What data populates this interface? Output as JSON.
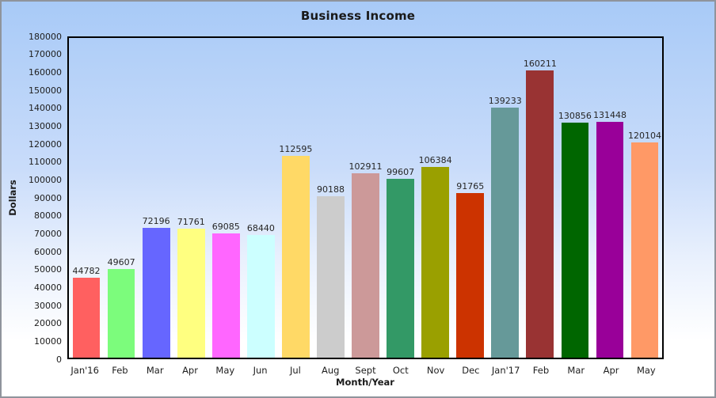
{
  "window": {
    "border_color": "#8f949c",
    "background_gradient_top": "#a8caf7",
    "background_gradient_bottom": "#ffffff",
    "axis_line_color": "#000000",
    "text_color": "#202020"
  },
  "chart_data": {
    "type": "bar",
    "title": "Business Income",
    "xlabel": "Month/Year",
    "ylabel": "Dollars",
    "ylim": [
      0,
      180000
    ],
    "ytick_step": 10000,
    "grid": false,
    "legend_position": "none",
    "value_labels_shown": true,
    "categories": [
      "Jan'16",
      "Feb",
      "Mar",
      "Apr",
      "May",
      "Jun",
      "Jul",
      "Aug",
      "Sept",
      "Oct",
      "Nov",
      "Dec",
      "Jan'17",
      "Feb",
      "Mar",
      "Apr",
      "May"
    ],
    "values": [
      44782,
      49607,
      72196,
      71761,
      69085,
      68440,
      112595,
      90188,
      102911,
      99607,
      106384,
      91765,
      139233,
      160211,
      130856,
      131448,
      120104
    ],
    "bar_colors": [
      "#FF6060",
      "#7CFC7C",
      "#6666FF",
      "#FFFF80",
      "#FF66FF",
      "#CCFFFF",
      "#FFD966",
      "#CCCCCC",
      "#CC9999",
      "#339966",
      "#9AA000",
      "#CC3300",
      "#669999",
      "#993333",
      "#006600",
      "#990099",
      "#FF9966"
    ]
  }
}
